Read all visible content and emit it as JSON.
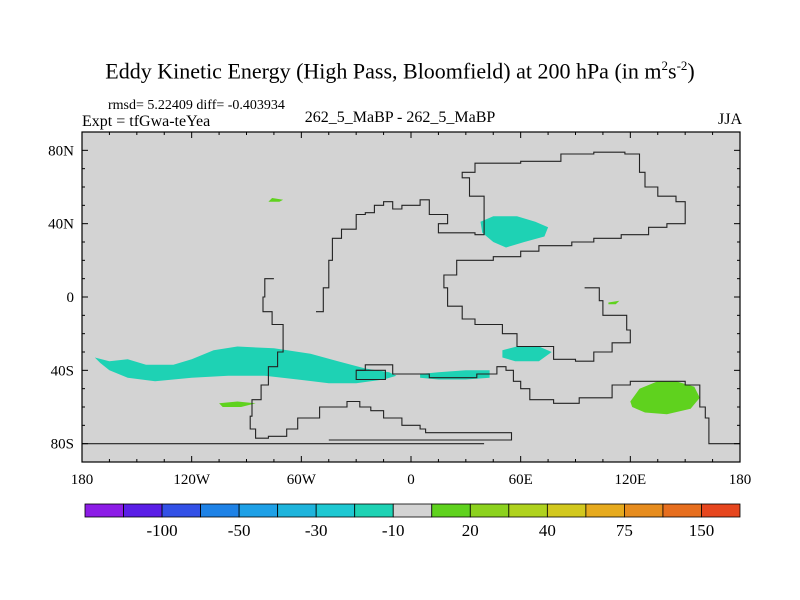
{
  "title": {
    "text": "Eddy Kinetic Energy (High Pass, Bloomfield) at 200 hPa (in m",
    "sup1": "2",
    "mid": "s",
    "sup2": "-2",
    "end": ")"
  },
  "stats": "rmsd= 5.22409  diff= -0.403934",
  "experiment": "Expt = tfGwa-teYea",
  "comparison": "262_5_MaBP - 262_5_MaBP",
  "season": "JJA",
  "chart_data": {
    "type": "contour-map",
    "title": "Eddy Kinetic Energy (High Pass, Bloomfield) at 200 hPa (in m2s-2)",
    "xlim": [
      -180,
      180
    ],
    "ylim": [
      -90,
      90
    ],
    "x_ticks": [
      -180,
      -120,
      -60,
      0,
      60,
      120,
      180
    ],
    "x_tick_labels": [
      "180",
      "120W",
      "60W",
      "0",
      "60E",
      "120E",
      "180"
    ],
    "y_ticks": [
      -80,
      -40,
      0,
      40,
      80
    ],
    "y_tick_labels": [
      "80S",
      "40S",
      "0",
      "40N",
      "80N"
    ],
    "background_level_color": "#d3d3d3",
    "colorbar": {
      "colors": [
        "#8c1ce6",
        "#5a1ee6",
        "#3250e6",
        "#1e82e6",
        "#1ea0e6",
        "#1eb4dc",
        "#1ec8d2",
        "#1ed2b4",
        "#d3d3d3",
        "#5fd21e",
        "#8cd21e",
        "#afd21e",
        "#d2c81e",
        "#e6aa1e",
        "#e68c1e",
        "#e66e1e",
        "#e6461e"
      ],
      "labels": [
        "-100",
        "-50",
        "-30",
        "-10",
        "20",
        "40",
        "75",
        "150"
      ]
    },
    "regions": [
      {
        "category": "-10 to -5",
        "color": "#1ed2b4",
        "lonlat": [
          [
            -173,
            -33
          ],
          [
            -165,
            -35
          ],
          [
            -155,
            -34
          ],
          [
            -145,
            -37
          ],
          [
            -130,
            -37
          ],
          [
            -120,
            -34
          ],
          [
            -108,
            -29
          ],
          [
            -95,
            -27
          ],
          [
            -75,
            -28
          ],
          [
            -55,
            -31
          ],
          [
            -40,
            -35
          ],
          [
            -25,
            -39
          ],
          [
            -12,
            -41
          ],
          [
            -8,
            -43
          ],
          [
            -15,
            -45
          ],
          [
            -30,
            -47
          ],
          [
            -45,
            -47
          ],
          [
            -62,
            -45
          ],
          [
            -80,
            -43
          ],
          [
            -100,
            -43
          ],
          [
            -120,
            -44
          ],
          [
            -140,
            -46
          ],
          [
            -155,
            -44
          ],
          [
            -165,
            -40
          ],
          [
            -170,
            -36
          ]
        ]
      },
      {
        "category": "-10 to -5",
        "color": "#1ed2b4",
        "lonlat": [
          [
            5,
            -42
          ],
          [
            15,
            -41
          ],
          [
            30,
            -40
          ],
          [
            43,
            -40
          ],
          [
            43,
            -44
          ],
          [
            30,
            -45
          ],
          [
            15,
            -45
          ],
          [
            5,
            -44
          ]
        ]
      },
      {
        "category": "-10 to -5",
        "color": "#1ed2b4",
        "lonlat": [
          [
            50,
            -29
          ],
          [
            58,
            -27
          ],
          [
            70,
            -27
          ],
          [
            77,
            -30
          ],
          [
            70,
            -35
          ],
          [
            57,
            -35
          ],
          [
            50,
            -33
          ]
        ]
      },
      {
        "category": "-10 to -5",
        "color": "#1ed2b4",
        "lonlat": [
          [
            38,
            41
          ],
          [
            45,
            44
          ],
          [
            58,
            44
          ],
          [
            68,
            41
          ],
          [
            75,
            38
          ],
          [
            73,
            33
          ],
          [
            62,
            30
          ],
          [
            52,
            27
          ],
          [
            45,
            30
          ],
          [
            39,
            35
          ]
        ]
      },
      {
        "category": "5 to 20",
        "color": "#5fd21e",
        "lonlat": [
          [
            120,
            -57
          ],
          [
            125,
            -50
          ],
          [
            135,
            -46
          ],
          [
            145,
            -46
          ],
          [
            155,
            -49
          ],
          [
            158,
            -55
          ],
          [
            153,
            -61
          ],
          [
            140,
            -64
          ],
          [
            128,
            -63
          ],
          [
            121,
            -60
          ]
        ]
      },
      {
        "category": "5 to 20",
        "color": "#5fd21e",
        "lonlat": [
          [
            -105,
            -58
          ],
          [
            -95,
            -57
          ],
          [
            -85,
            -58
          ],
          [
            -93,
            -60
          ],
          [
            -103,
            -60
          ]
        ]
      },
      {
        "category": "5 to 20",
        "color": "#5fd21e",
        "lonlat": [
          [
            -78,
            52
          ],
          [
            -72,
            52
          ],
          [
            -70,
            53
          ],
          [
            -76,
            54
          ]
        ]
      },
      {
        "category": "5 to 20",
        "color": "#5fd21e",
        "lonlat": [
          [
            108,
            -3
          ],
          [
            114,
            -2
          ],
          [
            112,
            -4
          ],
          [
            108,
            -4
          ]
        ]
      }
    ],
    "coastlines": [
      {
        "name": "eurasia-africa",
        "lonlat": [
          [
            -30,
            -40
          ],
          [
            -25,
            -37
          ],
          [
            -14,
            -37
          ],
          [
            -10,
            -42
          ],
          [
            -3,
            -42
          ],
          [
            3,
            -42
          ],
          [
            10,
            -44
          ],
          [
            18,
            -44
          ],
          [
            26,
            -44
          ],
          [
            36,
            -42
          ],
          [
            47,
            -38
          ],
          [
            52,
            -40
          ],
          [
            56,
            -46
          ],
          [
            60,
            -50
          ],
          [
            65,
            -56
          ],
          [
            78,
            -58
          ],
          [
            88,
            -58
          ],
          [
            92,
            -55
          ],
          [
            100,
            -55
          ],
          [
            110,
            -48
          ],
          [
            120,
            -46
          ],
          [
            135,
            -46
          ],
          [
            150,
            -48
          ],
          [
            158,
            -60
          ],
          [
            161,
            -66
          ],
          [
            163,
            -68
          ],
          [
            163,
            -80
          ],
          [
            180,
            -80
          ]
        ]
      },
      {
        "name": "north-outline",
        "lonlat": [
          [
            -52,
            -8
          ],
          [
            -48,
            5
          ],
          [
            -45,
            20
          ],
          [
            -43,
            32
          ],
          [
            -38,
            37
          ],
          [
            -30,
            45
          ],
          [
            -25,
            46
          ],
          [
            -20,
            50
          ],
          [
            -15,
            52
          ],
          [
            -10,
            48
          ],
          [
            -5,
            50
          ],
          [
            5,
            53
          ],
          [
            10,
            45
          ],
          [
            20,
            40
          ],
          [
            15,
            35
          ],
          [
            35,
            34
          ],
          [
            40,
            40
          ],
          [
            40,
            55
          ],
          [
            32,
            65
          ],
          [
            28,
            68
          ],
          [
            35,
            73
          ],
          [
            60,
            74
          ],
          [
            82,
            78
          ],
          [
            100,
            79
          ],
          [
            117,
            78
          ],
          [
            125,
            68
          ],
          [
            128,
            60
          ],
          [
            135,
            55
          ],
          [
            145,
            52
          ],
          [
            150,
            48
          ],
          [
            150,
            40
          ],
          [
            140,
            38
          ],
          [
            130,
            34
          ],
          [
            115,
            32
          ],
          [
            100,
            30
          ],
          [
            88,
            28
          ],
          [
            70,
            25
          ],
          [
            60,
            22
          ],
          [
            45,
            20
          ],
          [
            25,
            12
          ],
          [
            18,
            5
          ],
          [
            20,
            -5
          ],
          [
            28,
            -12
          ],
          [
            35,
            -15
          ],
          [
            50,
            -20
          ],
          [
            58,
            -27
          ],
          [
            70,
            -27
          ],
          [
            78,
            -34
          ],
          [
            90,
            -35
          ],
          [
            100,
            -30
          ],
          [
            110,
            -25
          ],
          [
            120,
            -18
          ],
          [
            118,
            -10
          ],
          [
            112,
            -10
          ],
          [
            105,
            -2
          ],
          [
            103,
            5
          ],
          [
            95,
            5
          ]
        ]
      },
      {
        "name": "south-america",
        "lonlat": [
          [
            -75,
            10
          ],
          [
            -80,
            0
          ],
          [
            -81,
            -8
          ],
          [
            -76,
            -15
          ],
          [
            -70,
            -22
          ],
          [
            -70,
            -30
          ],
          [
            -73,
            -38
          ],
          [
            -78,
            -48
          ],
          [
            -82,
            -56
          ],
          [
            -87,
            -65
          ],
          [
            -88,
            -72
          ],
          [
            -85,
            -77
          ],
          [
            -78,
            -76
          ],
          [
            -68,
            -72
          ],
          [
            -62,
            -66
          ],
          [
            -50,
            -60
          ],
          [
            -35,
            -57
          ],
          [
            -28,
            -60
          ],
          [
            -22,
            -62
          ],
          [
            -15,
            -66
          ],
          [
            -5,
            -70
          ],
          [
            5,
            -72
          ],
          [
            8,
            -74
          ],
          [
            40,
            -74
          ],
          [
            55,
            -74
          ],
          [
            55,
            -78
          ],
          [
            -45,
            -78
          ]
        ]
      },
      {
        "name": "south-border",
        "lonlat": [
          [
            -180,
            -80
          ],
          [
            -30,
            -80
          ],
          [
            10,
            -80
          ],
          [
            40,
            -80
          ]
        ]
      },
      {
        "name": "island",
        "lonlat": [
          [
            -30,
            -40
          ],
          [
            -15,
            -40
          ],
          [
            -14,
            -45
          ],
          [
            -30,
            -45
          ]
        ]
      }
    ]
  }
}
